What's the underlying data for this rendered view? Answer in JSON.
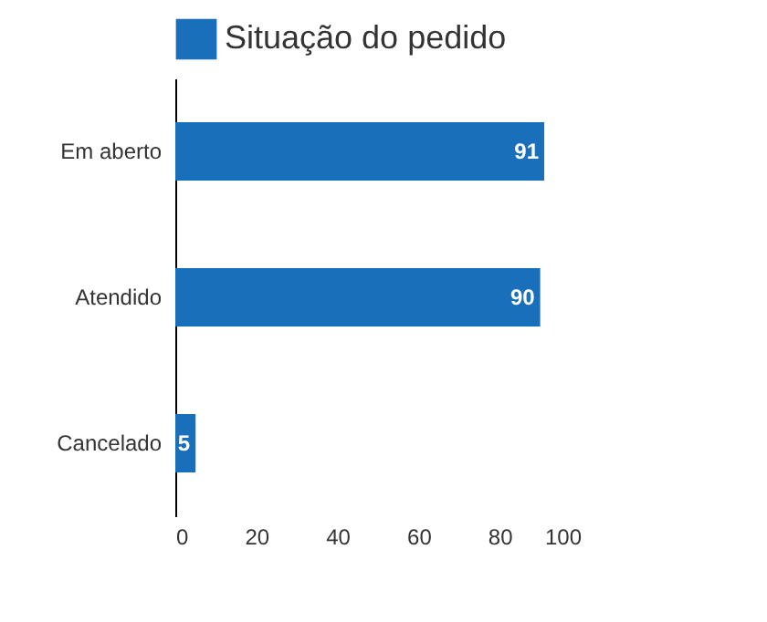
{
  "chart_data": {
    "type": "bar",
    "orientation": "horizontal",
    "categories": [
      "Em aberto",
      "Atendido",
      "Cancelado"
    ],
    "series": [
      {
        "name": "Situação do pedido",
        "color": "#1a6fba",
        "values": [
          91,
          90,
          5
        ]
      }
    ],
    "xlim": [
      0,
      100
    ],
    "xticks": [
      0,
      20,
      40,
      60,
      80,
      100
    ],
    "grid": false,
    "legend": "top",
    "data_labels": true
  }
}
